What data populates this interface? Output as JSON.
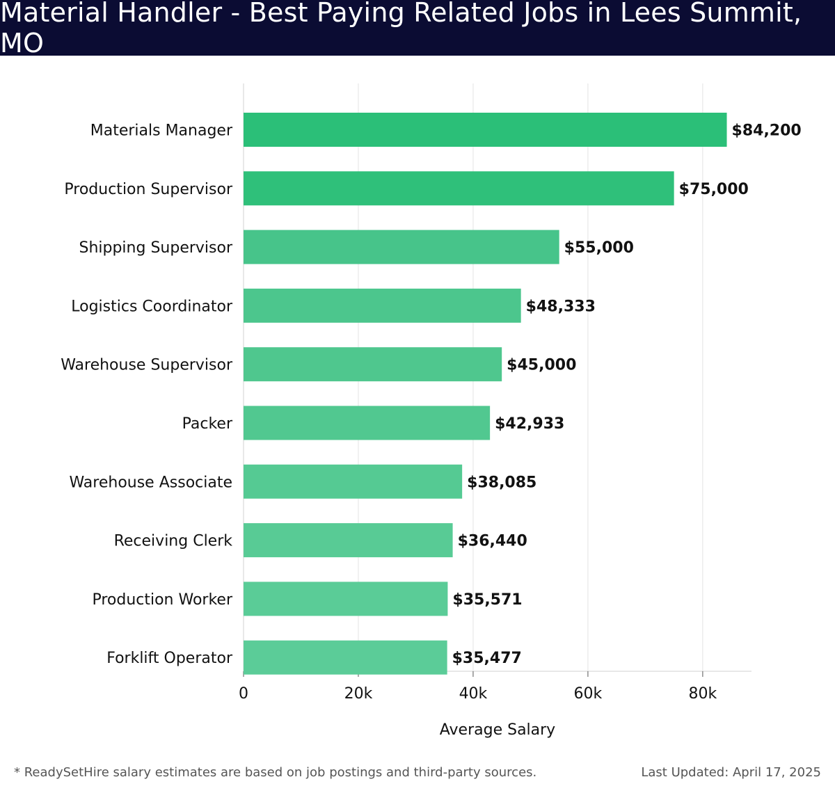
{
  "header": {
    "title": "Material Handler - Best Paying Related Jobs in Lees Summit, MO"
  },
  "chart_data": {
    "type": "bar",
    "orientation": "horizontal",
    "categories": [
      "Materials Manager",
      "Production Supervisor",
      "Shipping Supervisor",
      "Logistics Coordinator",
      "Warehouse Supervisor",
      "Packer",
      "Warehouse Associate",
      "Receiving Clerk",
      "Production Worker",
      "Forklift Operator"
    ],
    "values": [
      84200,
      75000,
      55000,
      48333,
      45000,
      42933,
      38085,
      36440,
      35571,
      35477
    ],
    "value_labels": [
      "$84,200",
      "$75,000",
      "$55,000",
      "$48,333",
      "$45,000",
      "$42,933",
      "$38,085",
      "$36,440",
      "$35,571",
      "$35,477"
    ],
    "xlabel": "Average Salary",
    "ylabel": "",
    "xlim": [
      0,
      88500
    ],
    "xticks": [
      0,
      20000,
      40000,
      60000,
      80000
    ],
    "xtick_labels": [
      "0",
      "20k",
      "40k",
      "60k",
      "80k"
    ],
    "grid": "vertical",
    "bar_colors": [
      "#2bbf78",
      "#2fc07a",
      "#47c48a",
      "#4cc68d",
      "#4fc78e",
      "#51c890",
      "#55ca93",
      "#58cb95",
      "#5acc97",
      "#5bcc98"
    ]
  },
  "footer": {
    "note": "* ReadySetHire salary estimates are based on job postings and third-party sources.",
    "updated": "Last Updated: April 17, 2025"
  }
}
